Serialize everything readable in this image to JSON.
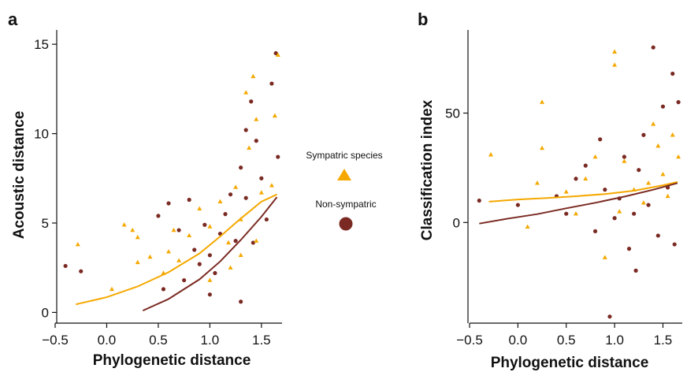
{
  "chart_data": [
    {
      "panel_label": "a",
      "type": "scatter",
      "xlabel": "Phylogenetic distance",
      "ylabel": "Acoustic distance",
      "xlim": [
        -0.5,
        1.7
      ],
      "ylim": [
        -0.6,
        15.8
      ],
      "x_ticks": [
        -0.5,
        0.0,
        0.5,
        1.0,
        1.5
      ],
      "x_tick_labels": [
        "−0.5",
        "0.0",
        "0.5",
        "1.0",
        "1.5"
      ],
      "y_ticks": [
        0,
        5,
        10,
        15
      ],
      "y_tick_labels": [
        "0",
        "5",
        "10",
        "15"
      ],
      "series": [
        {
          "name": "Sympatric species",
          "marker": "triangle",
          "points": [
            [
              -0.28,
              3.8
            ],
            [
              0.17,
              4.9
            ],
            [
              0.05,
              1.3
            ],
            [
              0.25,
              4.6
            ],
            [
              0.3,
              2.8
            ],
            [
              0.3,
              4.2
            ],
            [
              0.42,
              3.1
            ],
            [
              0.55,
              2.2
            ],
            [
              0.6,
              3.4
            ],
            [
              0.65,
              4.6
            ],
            [
              0.7,
              2.9
            ],
            [
              0.8,
              4.3
            ],
            [
              0.9,
              5.8
            ],
            [
              1.0,
              1.8
            ],
            [
              1.0,
              4.8
            ],
            [
              1.1,
              6.2
            ],
            [
              1.18,
              3.9
            ],
            [
              1.25,
              7.0
            ],
            [
              1.3,
              5.2
            ],
            [
              1.35,
              12.3
            ],
            [
              1.38,
              9.2
            ],
            [
              1.42,
              13.2
            ],
            [
              1.45,
              10.8
            ],
            [
              1.5,
              6.7
            ],
            [
              1.6,
              7.1
            ],
            [
              1.63,
              11.0
            ],
            [
              1.66,
              14.4
            ],
            [
              1.2,
              2.5
            ],
            [
              1.3,
              3.2
            ],
            [
              1.45,
              4.0
            ]
          ],
          "curve": [
            [
              -0.3,
              0.45
            ],
            [
              0.0,
              0.85
            ],
            [
              0.3,
              1.45
            ],
            [
              0.6,
              2.25
            ],
            [
              0.9,
              3.3
            ],
            [
              1.1,
              4.25
            ],
            [
              1.3,
              5.25
            ],
            [
              1.5,
              6.2
            ],
            [
              1.65,
              6.6
            ]
          ]
        },
        {
          "name": "Non-sympatric",
          "marker": "circle",
          "points": [
            [
              -0.4,
              2.6
            ],
            [
              -0.25,
              2.3
            ],
            [
              0.5,
              5.4
            ],
            [
              0.6,
              6.1
            ],
            [
              0.7,
              4.6
            ],
            [
              0.8,
              6.3
            ],
            [
              0.85,
              3.5
            ],
            [
              0.9,
              2.7
            ],
            [
              0.95,
              4.9
            ],
            [
              1.0,
              3.2
            ],
            [
              1.05,
              2.2
            ],
            [
              1.1,
              4.4
            ],
            [
              1.15,
              5.5
            ],
            [
              1.2,
              6.6
            ],
            [
              1.25,
              4.0
            ],
            [
              1.3,
              8.1
            ],
            [
              1.35,
              10.2
            ],
            [
              1.35,
              6.4
            ],
            [
              1.4,
              11.8
            ],
            [
              1.42,
              3.9
            ],
            [
              1.45,
              9.6
            ],
            [
              1.5,
              7.5
            ],
            [
              1.55,
              5.2
            ],
            [
              1.6,
              12.8
            ],
            [
              1.64,
              14.5
            ],
            [
              1.66,
              8.7
            ],
            [
              0.75,
              1.8
            ],
            [
              0.55,
              1.3
            ],
            [
              1.0,
              1.0
            ],
            [
              1.3,
              0.6
            ]
          ],
          "curve": [
            [
              0.35,
              0.1
            ],
            [
              0.6,
              0.75
            ],
            [
              0.9,
              1.85
            ],
            [
              1.1,
              2.85
            ],
            [
              1.3,
              4.05
            ],
            [
              1.5,
              5.35
            ],
            [
              1.65,
              6.45
            ]
          ]
        }
      ]
    },
    {
      "panel_label": "b",
      "type": "scatter",
      "xlabel": "Phylogenetic distance",
      "ylabel": "Classification index",
      "xlim": [
        -0.5,
        1.7
      ],
      "ylim": [
        -46,
        88
      ],
      "x_ticks": [
        -0.5,
        0.0,
        0.5,
        1.0,
        1.5
      ],
      "x_tick_labels": [
        "−0.5",
        "0.0",
        "0.5",
        "1.0",
        "1.5"
      ],
      "y_ticks": [
        0,
        50
      ],
      "y_tick_labels": [
        "0",
        "50"
      ],
      "series": [
        {
          "name": "Sympatric species",
          "marker": "triangle",
          "points": [
            [
              -0.28,
              31
            ],
            [
              0.2,
              18
            ],
            [
              0.25,
              55
            ],
            [
              0.25,
              34
            ],
            [
              0.5,
              14
            ],
            [
              0.6,
              4
            ],
            [
              0.7,
              20
            ],
            [
              0.8,
              30
            ],
            [
              0.9,
              -16
            ],
            [
              1.0,
              78
            ],
            [
              1.0,
              72
            ],
            [
              1.05,
              5
            ],
            [
              1.1,
              28
            ],
            [
              1.2,
              15
            ],
            [
              1.3,
              9
            ],
            [
              1.35,
              18
            ],
            [
              1.4,
              45
            ],
            [
              1.45,
              35
            ],
            [
              1.5,
              22
            ],
            [
              1.55,
              12
            ],
            [
              1.6,
              40
            ],
            [
              1.66,
              30
            ],
            [
              0.1,
              -2
            ]
          ],
          "curve": [
            [
              -0.3,
              9.5
            ],
            [
              0.0,
              10.5
            ],
            [
              0.3,
              11.2
            ],
            [
              0.6,
              12.0
            ],
            [
              0.9,
              13.0
            ],
            [
              1.2,
              14.5
            ],
            [
              1.5,
              17.0
            ],
            [
              1.65,
              18.5
            ]
          ]
        },
        {
          "name": "Non-sympatric",
          "marker": "circle",
          "points": [
            [
              -0.4,
              10
            ],
            [
              0.0,
              8
            ],
            [
              0.4,
              12
            ],
            [
              0.5,
              4
            ],
            [
              0.6,
              20
            ],
            [
              0.7,
              26
            ],
            [
              0.8,
              -4
            ],
            [
              0.85,
              38
            ],
            [
              0.9,
              15
            ],
            [
              0.95,
              -43
            ],
            [
              1.0,
              2
            ],
            [
              1.05,
              11
            ],
            [
              1.1,
              30
            ],
            [
              1.15,
              -12
            ],
            [
              1.2,
              4
            ],
            [
              1.22,
              -22
            ],
            [
              1.25,
              24
            ],
            [
              1.3,
              40
            ],
            [
              1.35,
              8
            ],
            [
              1.4,
              80
            ],
            [
              1.45,
              -6
            ],
            [
              1.5,
              53
            ],
            [
              1.55,
              16
            ],
            [
              1.6,
              68
            ],
            [
              1.66,
              55
            ],
            [
              1.62,
              -10
            ]
          ],
          "curve": [
            [
              -0.4,
              -0.5
            ],
            [
              -0.1,
              1.8
            ],
            [
              0.2,
              3.8
            ],
            [
              0.5,
              6.5
            ],
            [
              0.8,
              9.0
            ],
            [
              1.1,
              11.8
            ],
            [
              1.4,
              15.0
            ],
            [
              1.65,
              18.0
            ]
          ]
        }
      ]
    }
  ],
  "legend": {
    "sympatric_label": "Sympatric species",
    "nonsympatric_label": "Non-sympatric"
  },
  "colors": {
    "sympatric": "#f5a800",
    "nonsympatric": "#7a2a22",
    "axis": "#111111"
  }
}
